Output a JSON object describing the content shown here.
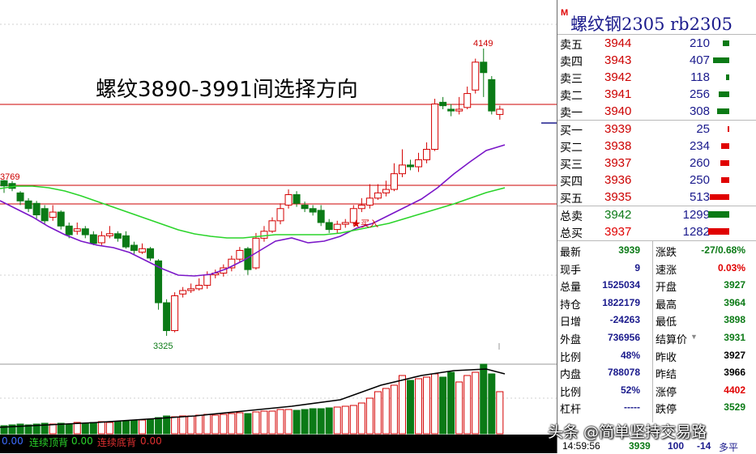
{
  "chart": {
    "headline": "螺纹3890-3991间选择方向",
    "high_label": "4149",
    "low_label": "3325",
    "left_label": "3769",
    "buy_marker": "★买入",
    "colors": {
      "up": "#d40000",
      "down": "#0b7a16",
      "ma_purple": "#7a16c8",
      "ma_green": "#2ad42a",
      "level_line": "#cc0000"
    }
  },
  "bottom_bar": {
    "value1": "0.00",
    "lbl1": "连续顶背",
    "value2": "0.00",
    "lbl2": "连续底背",
    "value3": "0.00"
  },
  "quote": {
    "marker": "M",
    "title": "螺纹钢2305  rb2305",
    "asks": [
      {
        "label": "卖五",
        "price": "3944",
        "vol": "210",
        "bar": 0.12
      },
      {
        "label": "卖四",
        "price": "3943",
        "vol": "407",
        "bar": 0.28
      },
      {
        "label": "卖三",
        "price": "3942",
        "vol": "118",
        "bar": 0.06
      },
      {
        "label": "卖二",
        "price": "3941",
        "vol": "256",
        "bar": 0.18
      },
      {
        "label": "卖一",
        "price": "3940",
        "vol": "308",
        "bar": 0.22
      }
    ],
    "bids": [
      {
        "label": "买一",
        "price": "3939",
        "vol": "25",
        "bar": 0.02
      },
      {
        "label": "买二",
        "price": "3938",
        "vol": "234",
        "bar": 0.14
      },
      {
        "label": "买三",
        "price": "3937",
        "vol": "260",
        "bar": 0.15
      },
      {
        "label": "买四",
        "price": "3936",
        "vol": "250",
        "bar": 0.14
      },
      {
        "label": "买五",
        "price": "3935",
        "vol": "513",
        "bar": 0.34
      }
    ],
    "totals": [
      {
        "label": "总卖",
        "price": "3942",
        "vol": "1299",
        "color": "#0b7a16"
      },
      {
        "label": "总买",
        "price": "3937",
        "vol": "1282",
        "color": "#e00000"
      }
    ],
    "stats_left": [
      {
        "label": "最新",
        "value": "3939",
        "color": "#0b7a16"
      },
      {
        "label": "现手",
        "value": "9",
        "color": "#1a1a8c"
      },
      {
        "label": "总量",
        "value": "1525034",
        "color": "#1a1a8c"
      },
      {
        "label": "持仓",
        "value": "1822179",
        "color": "#1a1a8c"
      },
      {
        "label": "日增",
        "value": "-24263",
        "color": "#1a1a8c"
      },
      {
        "label": "外盘",
        "value": "736956",
        "color": "#1a1a8c"
      },
      {
        "label": "比例",
        "value": "48%",
        "color": "#1a1a8c"
      },
      {
        "label": "内盘",
        "value": "788078",
        "color": "#1a1a8c"
      },
      {
        "label": "比例",
        "value": "52%",
        "color": "#1a1a8c"
      },
      {
        "label": "杠杆",
        "value": "-----",
        "color": "#1a1a8c"
      }
    ],
    "stats_right": [
      {
        "label": "涨跌",
        "value": "-27/0.68%",
        "color": "#0b7a16"
      },
      {
        "label": "速涨",
        "value": "0.03%",
        "color": "#e00000"
      },
      {
        "label": "开盘",
        "value": "3927",
        "color": "#0b7a16"
      },
      {
        "label": "最高",
        "value": "3964",
        "color": "#0b7a16"
      },
      {
        "label": "最低",
        "value": "3898",
        "color": "#0b7a16"
      },
      {
        "label": "结算价",
        "value": "3931",
        "color": "#0b7a16"
      },
      {
        "label": "昨收",
        "value": "3927",
        "color": "#000000"
      },
      {
        "label": "昨结",
        "value": "3966",
        "color": "#000000"
      },
      {
        "label": "涨停",
        "value": "4402",
        "color": "#e00000"
      },
      {
        "label": "跌停",
        "value": "3529",
        "color": "#0b7a16"
      }
    ],
    "footer": {
      "time": "14:59:56",
      "price": "3939",
      "vol": "100",
      "change": "-14",
      "type": "多平"
    }
  },
  "watermark": "头条 @简单坚持交易路"
}
